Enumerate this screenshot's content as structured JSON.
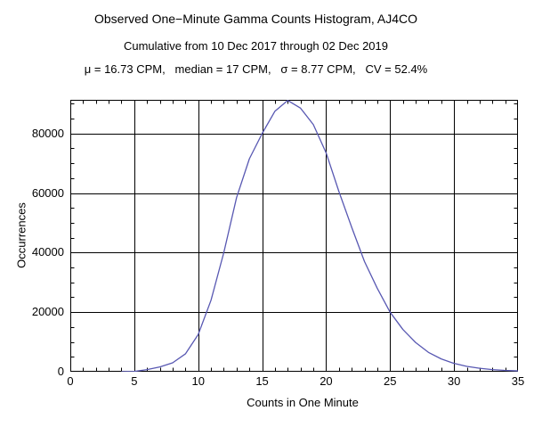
{
  "header": {
    "title": "Observed One−Minute Gamma Counts Histogram, AJ4CO",
    "subtitle": "Cumulative from 10 Dec 2017 through 02 Dec 2019",
    "stats": "μ = 16.73 CPM,   median = 17 CPM,   σ = 8.77 CPM,   CV = 52.4%"
  },
  "chart_data": {
    "type": "line",
    "title": "Observed One−Minute Gamma Counts Histogram, AJ4CO",
    "subtitle": "Cumulative from 10 Dec 2017 through 02 Dec 2019",
    "annotation": "μ = 16.73 CPM,   median = 17 CPM,   σ = 8.77 CPM,   CV = 52.4%",
    "xlabel": "Counts in One Minute",
    "ylabel": "Occurrences",
    "xlim": [
      0,
      35
    ],
    "ylim": [
      0,
      91300
    ],
    "grid": true,
    "legend": "none",
    "frame_color": "#000000",
    "grid_color": "#000000",
    "line_color": "#5858b2",
    "x_minor_step": 1,
    "y_minor_step": 5000,
    "xticks": [
      {
        "value": 0,
        "label": "0"
      },
      {
        "value": 5,
        "label": "5"
      },
      {
        "value": 10,
        "label": "10"
      },
      {
        "value": 15,
        "label": "15"
      },
      {
        "value": 20,
        "label": "20"
      },
      {
        "value": 25,
        "label": "25"
      },
      {
        "value": 30,
        "label": "30"
      },
      {
        "value": 35,
        "label": "35"
      }
    ],
    "yticks": [
      {
        "value": 0,
        "label": "0"
      },
      {
        "value": 20000,
        "label": "20000"
      },
      {
        "value": 40000,
        "label": "40000"
      },
      {
        "value": 60000,
        "label": "60000"
      },
      {
        "value": 80000,
        "label": "80000"
      }
    ],
    "series": [
      {
        "name": "gamma-count-occurrences",
        "x": [
          4,
          5,
          6,
          7,
          8,
          9,
          10,
          11,
          12,
          13,
          14,
          15,
          16,
          17,
          18,
          19,
          20,
          21,
          22,
          23,
          24,
          25,
          26,
          27,
          28,
          29,
          30,
          31,
          32,
          33,
          34,
          35
        ],
        "y": [
          30,
          120,
          700,
          1600,
          3000,
          6000,
          12500,
          24000,
          40000,
          58500,
          71500,
          80000,
          87500,
          91100,
          88500,
          83000,
          73500,
          60500,
          48500,
          37000,
          28000,
          20000,
          14200,
          9800,
          6500,
          4300,
          2800,
          1800,
          1150,
          720,
          450,
          280
        ]
      }
    ]
  }
}
